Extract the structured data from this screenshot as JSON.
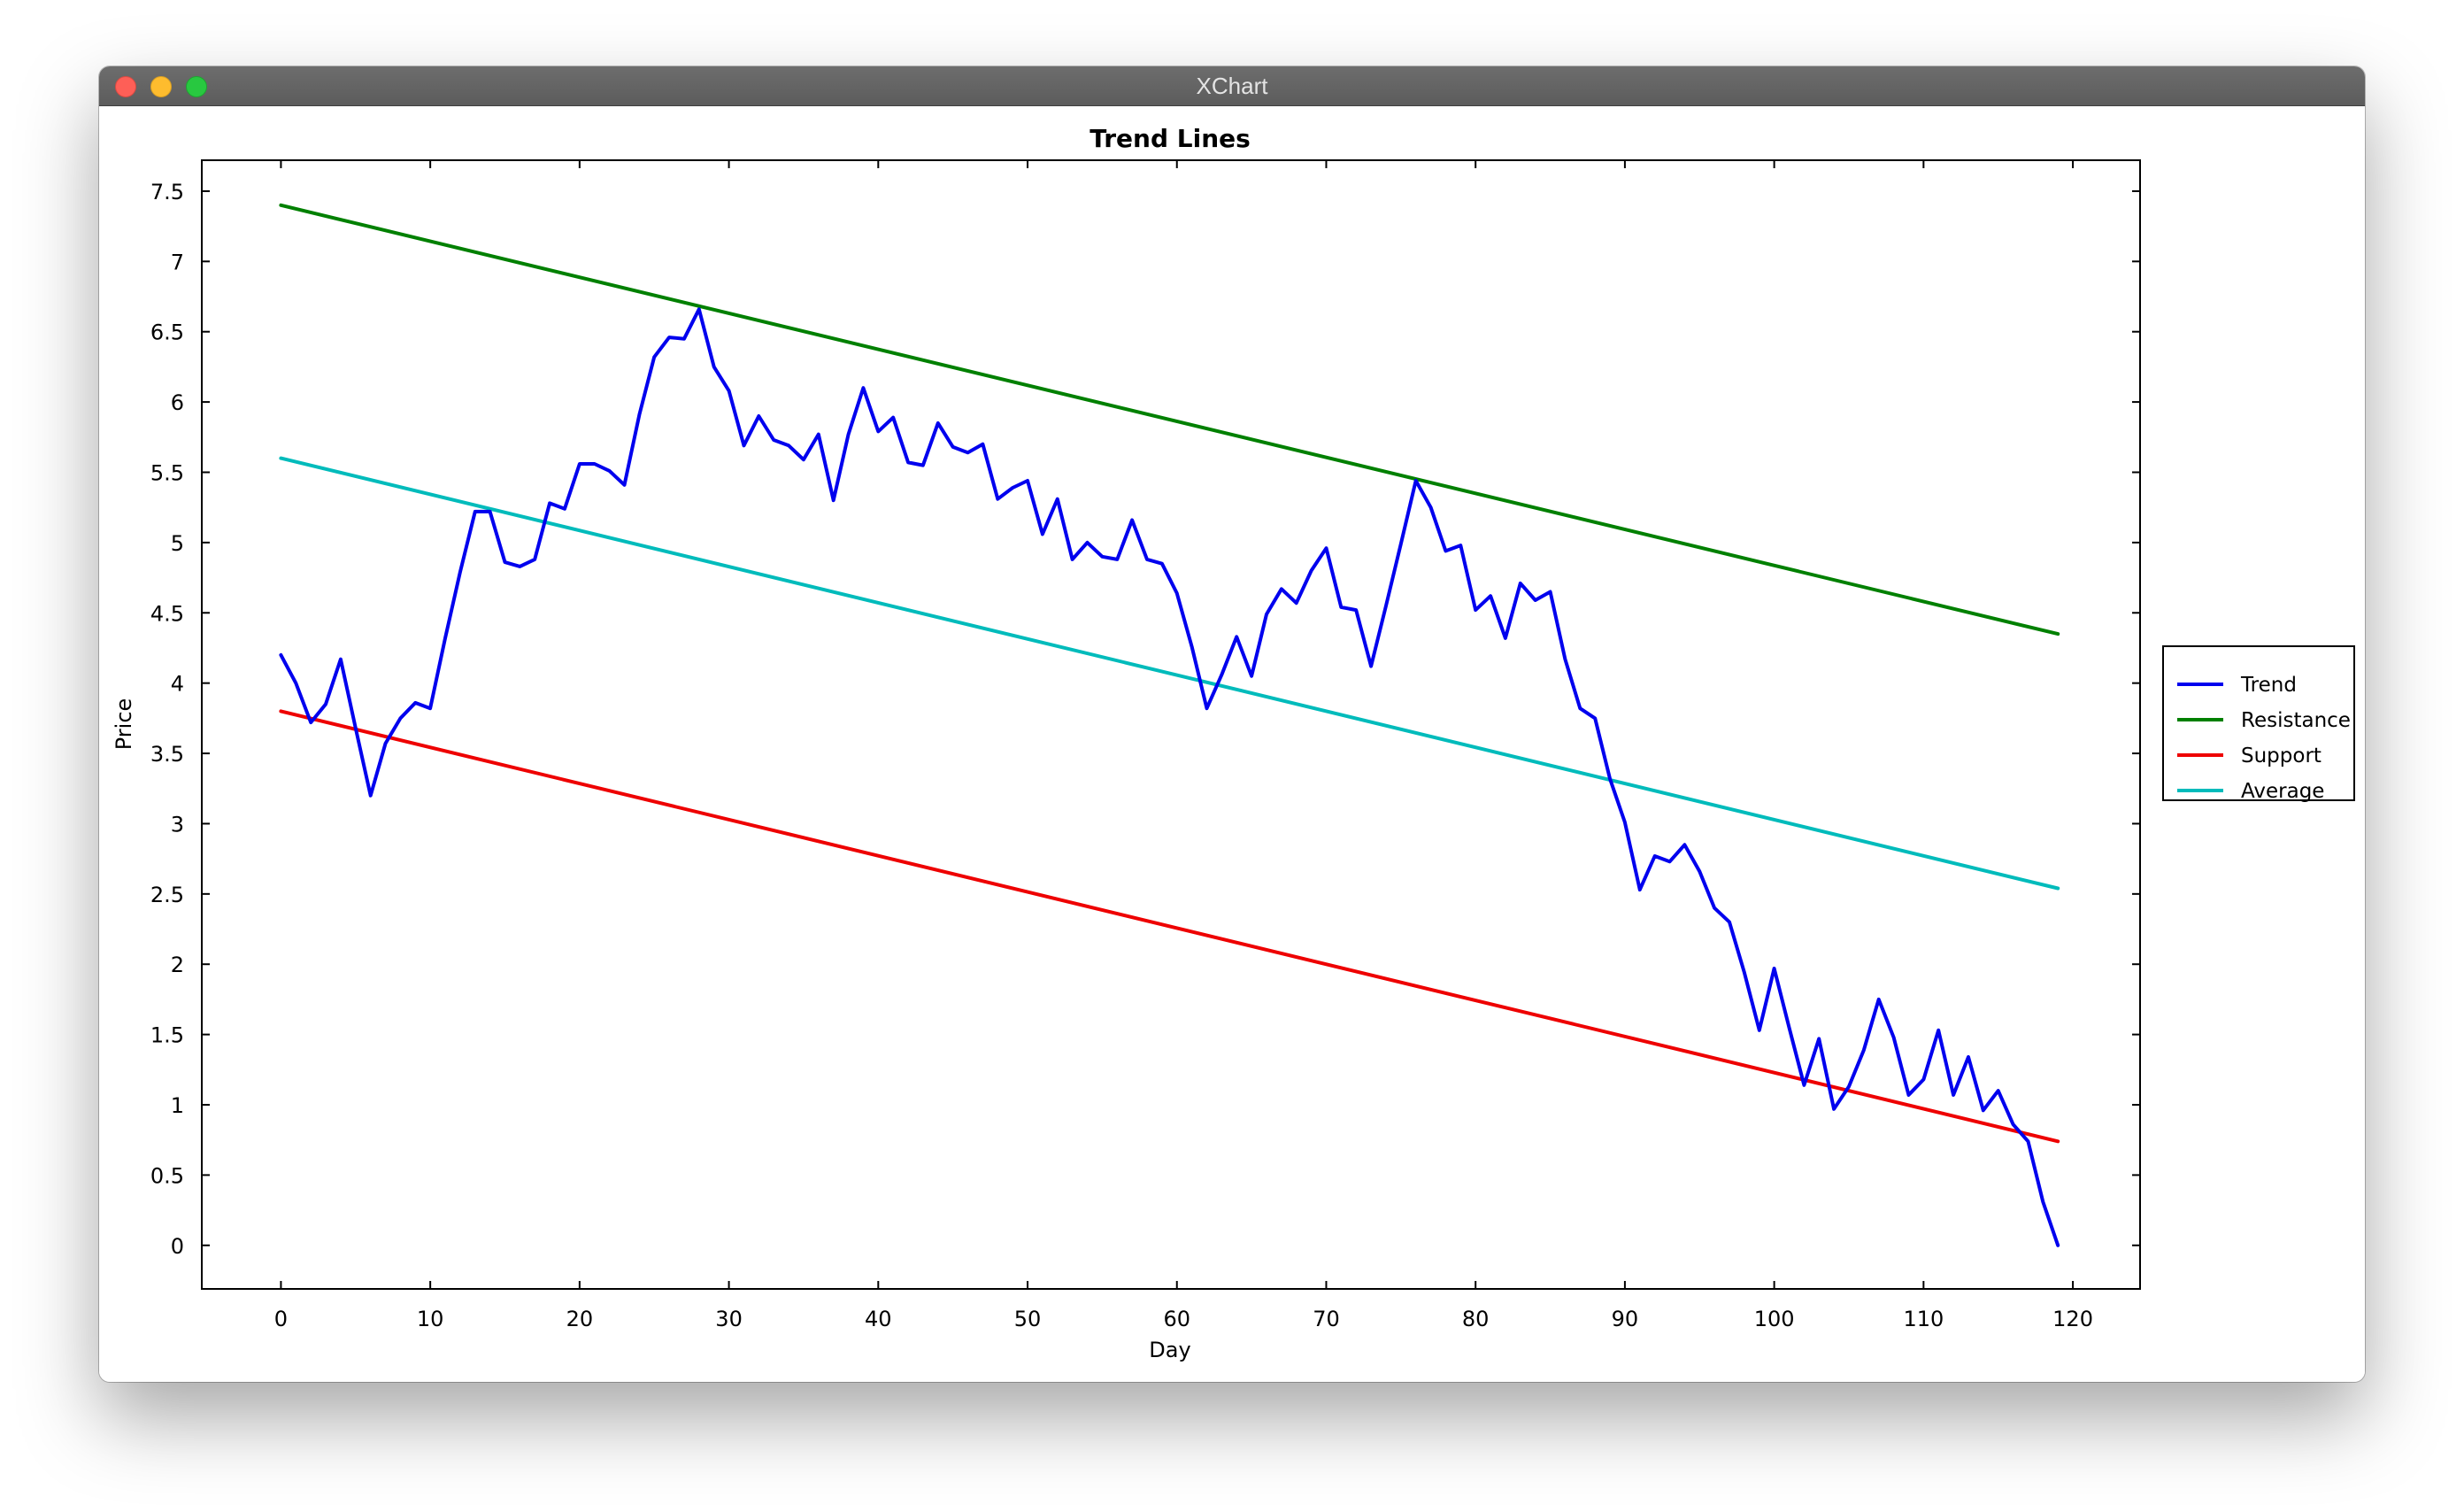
{
  "window": {
    "title": "XChart"
  },
  "chart_data": {
    "type": "line",
    "title": "Trend Lines",
    "xlabel": "Day",
    "ylabel": "Price",
    "xlim": [
      -5.3,
      124.5
    ],
    "ylim": [
      -0.31,
      7.72
    ],
    "x_ticks": [
      0,
      10,
      20,
      30,
      40,
      50,
      60,
      70,
      80,
      90,
      100,
      110,
      120
    ],
    "y_ticks": [
      0,
      0.5,
      1,
      1.5,
      2,
      2.5,
      3,
      3.5,
      4,
      4.5,
      5,
      5.5,
      6,
      6.5,
      7,
      7.5
    ],
    "grid": false,
    "legend_position": "right",
    "series": [
      {
        "name": "Trend",
        "color": "#0000ee",
        "values": [
          4.2,
          4.0,
          3.72,
          3.85,
          4.17,
          3.68,
          3.2,
          3.57,
          3.75,
          3.86,
          3.82,
          4.32,
          4.79,
          5.22,
          5.22,
          4.86,
          4.83,
          4.88,
          5.28,
          5.24,
          5.56,
          5.56,
          5.51,
          5.41,
          5.91,
          6.32,
          6.46,
          6.45,
          6.66,
          6.25,
          6.08,
          5.69,
          5.9,
          5.73,
          5.69,
          5.59,
          5.77,
          5.3,
          5.77,
          6.1,
          5.79,
          5.89,
          5.57,
          5.55,
          5.85,
          5.68,
          5.64,
          5.7,
          5.31,
          5.39,
          5.44,
          5.06,
          5.31,
          4.88,
          5.0,
          4.9,
          4.88,
          5.16,
          4.88,
          4.85,
          4.64,
          4.26,
          3.82,
          4.06,
          4.33,
          4.05,
          4.49,
          4.67,
          4.57,
          4.8,
          4.96,
          4.54,
          4.52,
          4.12,
          4.55,
          4.99,
          5.44,
          5.25,
          4.94,
          4.98,
          4.52,
          4.62,
          4.32,
          4.71,
          4.59,
          4.65,
          4.17,
          3.82,
          3.75,
          3.32,
          3.01,
          2.53,
          2.77,
          2.73,
          2.85,
          2.66,
          2.4,
          2.3,
          1.94,
          1.53,
          1.97,
          1.55,
          1.14,
          1.47,
          0.97,
          1.13,
          1.39,
          1.75,
          1.48,
          1.07,
          1.18,
          1.53,
          1.07,
          1.34,
          0.96,
          1.1,
          0.86,
          0.74,
          0.31,
          0.0
        ]
      },
      {
        "name": "Resistance",
        "color": "#008000",
        "x": [
          0,
          119
        ],
        "values": [
          7.4,
          4.35
        ]
      },
      {
        "name": "Support",
        "color": "#ee0000",
        "x": [
          0,
          119
        ],
        "values": [
          3.8,
          0.74
        ]
      },
      {
        "name": "Average",
        "color": "#00bbbb",
        "x": [
          0,
          119
        ],
        "values": [
          5.6,
          2.54
        ]
      }
    ]
  }
}
